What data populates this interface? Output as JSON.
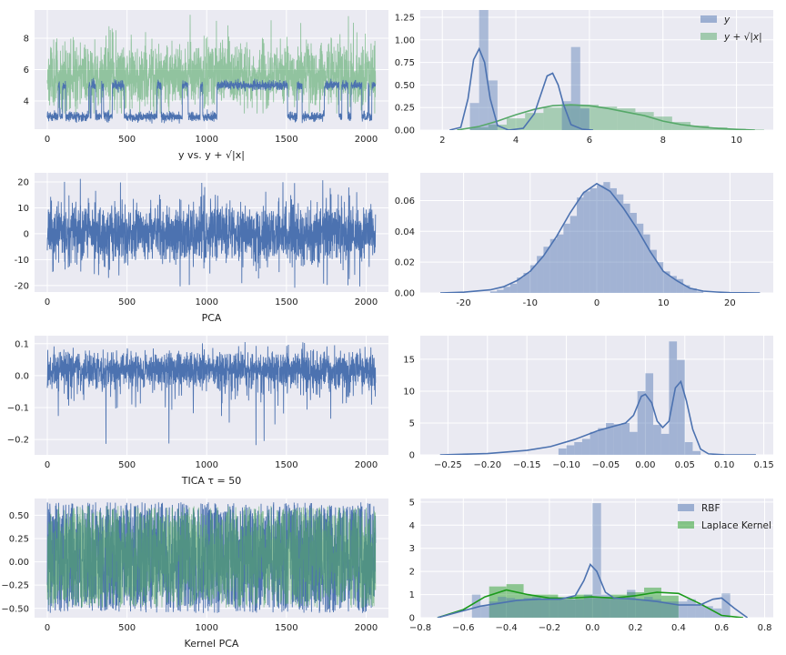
{
  "figure": {
    "background": "#ffffff",
    "panel_bg": "#EAEAF2",
    "grid_color": "#ffffff",
    "colors": {
      "blue": "#4C72B0",
      "green": "#55A868",
      "green_pure": "#1a9a1a"
    }
  },
  "chart_data": [
    {
      "id": "p1",
      "type": "line",
      "xlabel": "y  vs.  y + √|x|",
      "xlim": [
        -80,
        2140
      ],
      "ylim": [
        2.2,
        9.8
      ],
      "xticks": [
        0,
        500,
        1000,
        1500,
        2000
      ],
      "yticks": [
        4,
        6,
        8
      ],
      "n_points": 2060,
      "series": [
        {
          "name": "y + sqrt(|x|)",
          "color": "green",
          "alpha": 0.6,
          "kind": "noisy",
          "mean": 5.6,
          "sd": 1.0,
          "min": 3.2,
          "max": 9.5,
          "seed": 11
        },
        {
          "name": "y",
          "color": "blue",
          "alpha": 1,
          "kind": "switch",
          "states": [
            3.0,
            5.0
          ],
          "noise": 0.15,
          "p_switch": 0.02,
          "seed": 7
        }
      ]
    },
    {
      "id": "p2",
      "type": "hist+kde",
      "xlim": [
        1.4,
        11.0
      ],
      "ylim": [
        0,
        1.33
      ],
      "xticks": [
        2,
        4,
        6,
        8,
        10
      ],
      "yticks": [
        0.0,
        0.25,
        0.5,
        0.75,
        1.0,
        1.25
      ],
      "ytick_labels": [
        "0.00",
        "0.25",
        "0.50",
        "0.75",
        "1.00",
        "1.25"
      ],
      "legend": {
        "position": "top-right",
        "entries": [
          {
            "label": "y",
            "color": "blue",
            "kind": "patch"
          },
          {
            "label": "y + √|x|",
            "color": "green",
            "kind": "patch"
          }
        ]
      },
      "series": [
        {
          "name": "y + sqrt(|x|)",
          "color": "green",
          "alpha": 0.45,
          "bins": {
            "start": 2.75,
            "width": 0.5,
            "values": [
              0.03,
              0.06,
              0.13,
              0.19,
              0.25,
              0.28,
              0.28,
              0.26,
              0.24,
              0.2,
              0.15,
              0.09,
              0.05,
              0.03,
              0.015,
              0.007
            ]
          },
          "kde": {
            "x": [
              2.4,
              3.0,
              3.5,
              4.0,
              4.5,
              5.0,
              5.5,
              6.0,
              6.5,
              7.0,
              7.5,
              8.0,
              8.5,
              9.0,
              9.5,
              10.0,
              10.5
            ],
            "y": [
              0.0,
              0.04,
              0.1,
              0.17,
              0.23,
              0.27,
              0.28,
              0.27,
              0.24,
              0.2,
              0.16,
              0.1,
              0.06,
              0.035,
              0.018,
              0.008,
              0.0
            ]
          }
        },
        {
          "name": "y",
          "color": "blue",
          "alpha": 0.4,
          "bins": {
            "start": 2.75,
            "width": 0.25,
            "values": [
              0.3,
              1.37,
              0.55,
              0.0,
              0.0,
              0.0,
              0.0,
              0.0,
              0.0,
              0.0,
              0.32,
              0.92,
              0.24
            ]
          },
          "kde": {
            "x": [
              2.2,
              2.5,
              2.7,
              2.85,
              3.0,
              3.15,
              3.3,
              3.5,
              3.8,
              4.2,
              4.5,
              4.7,
              4.85,
              5.0,
              5.15,
              5.3,
              5.5,
              5.8,
              6.1
            ],
            "y": [
              0.0,
              0.03,
              0.35,
              0.78,
              0.9,
              0.75,
              0.35,
              0.05,
              0.0,
              0.02,
              0.18,
              0.42,
              0.6,
              0.63,
              0.5,
              0.28,
              0.06,
              0.01,
              0.0
            ]
          }
        }
      ]
    },
    {
      "id": "p3",
      "type": "line",
      "xlabel": "PCA",
      "xlim": [
        -80,
        2140
      ],
      "ylim": [
        -22.5,
        23.5
      ],
      "xticks": [
        0,
        500,
        1000,
        1500,
        2000
      ],
      "yticks": [
        -20,
        -10,
        0,
        10,
        20
      ],
      "n_points": 2060,
      "series": [
        {
          "name": "PCA",
          "color": "blue",
          "alpha": 1,
          "kind": "noisy",
          "mean": 0,
          "sd": 5.8,
          "min": -21,
          "max": 21.5,
          "seed": 23
        }
      ]
    },
    {
      "id": "p4",
      "type": "hist+kde",
      "xlim": [
        -26.5,
        26.5
      ],
      "ylim": [
        0,
        0.078
      ],
      "xticks": [
        -20,
        -10,
        0,
        10,
        20
      ],
      "yticks": [
        0.0,
        0.02,
        0.04,
        0.06
      ],
      "ytick_labels": [
        "0.00",
        "0.02",
        "0.04",
        "0.06"
      ],
      "series": [
        {
          "name": "PCA",
          "color": "blue",
          "alpha": 0.45,
          "bins": {
            "start": -16,
            "width": 1,
            "values": [
              0.001,
              0.002,
              0.004,
              0.006,
              0.01,
              0.013,
              0.018,
              0.024,
              0.03,
              0.035,
              0.038,
              0.045,
              0.05,
              0.062,
              0.066,
              0.068,
              0.07,
              0.072,
              0.068,
              0.064,
              0.058,
              0.052,
              0.045,
              0.038,
              0.028,
              0.02,
              0.014,
              0.011,
              0.009,
              0.005,
              0.003,
              0.001
            ]
          },
          "kde": {
            "x": [
              -23.5,
              -20,
              -16,
              -14,
              -12,
              -10,
              -8,
              -6,
              -4,
              -2,
              0,
              2,
              4,
              6,
              8,
              10,
              12,
              14,
              16,
              18,
              20,
              22,
              24.5
            ],
            "y": [
              0.0,
              0.0005,
              0.002,
              0.004,
              0.008,
              0.014,
              0.024,
              0.037,
              0.052,
              0.065,
              0.071,
              0.066,
              0.055,
              0.042,
              0.027,
              0.014,
              0.008,
              0.003,
              0.0012,
              0.0006,
              0.0002,
              0.0001,
              0.0
            ]
          }
        }
      ]
    },
    {
      "id": "p5",
      "type": "line",
      "xlabel": "TICA τ = 50",
      "xlim": [
        -80,
        2140
      ],
      "ylim": [
        -0.248,
        0.125
      ],
      "xticks": [
        0,
        500,
        1000,
        1500,
        2000
      ],
      "yticks": [
        -0.2,
        -0.1,
        0.0,
        0.1
      ],
      "ytick_labels": [
        "−0.2",
        "−0.1",
        "0.0",
        "0.1"
      ],
      "n_points": 2060,
      "series": [
        {
          "name": "TICA",
          "color": "blue",
          "alpha": 1,
          "kind": "skew",
          "mean": 0.02,
          "sd": 0.028,
          "min": -0.23,
          "max": 0.105,
          "seed": 31
        }
      ]
    },
    {
      "id": "p6",
      "type": "hist+kde",
      "xlim": [
        -0.285,
        0.162
      ],
      "ylim": [
        0,
        18.7
      ],
      "xticks": [
        -0.25,
        -0.2,
        -0.15,
        -0.1,
        -0.05,
        0.0,
        0.05,
        0.1,
        0.15
      ],
      "xtick_labels": [
        "−0.25",
        "−0.20",
        "−0.15",
        "−0.10",
        "−0.05",
        "0.00",
        "0.05",
        "0.10",
        "0.15"
      ],
      "yticks": [
        0,
        5,
        10,
        15
      ],
      "series": [
        {
          "name": "TICA",
          "color": "blue",
          "alpha": 0.45,
          "bins": {
            "start": -0.11,
            "width": 0.01,
            "values": [
              1.0,
              1.5,
              2.0,
              2.5,
              3.6,
              4.2,
              5.0,
              4.8,
              5.0,
              3.6,
              10.0,
              12.8,
              4.7,
              3.3,
              17.8,
              14.9,
              2.0,
              0.6
            ]
          },
          "kde": {
            "x": [
              -0.26,
              -0.2,
              -0.15,
              -0.12,
              -0.09,
              -0.06,
              -0.04,
              -0.025,
              -0.015,
              -0.005,
              0.0,
              0.008,
              0.015,
              0.022,
              0.03,
              0.038,
              0.045,
              0.052,
              0.06,
              0.07,
              0.08,
              0.1,
              0.14
            ],
            "y": [
              0.0,
              0.2,
              0.7,
              1.3,
              2.4,
              3.8,
              4.5,
              5.0,
              6.2,
              9.2,
              9.5,
              8.2,
              5.3,
              4.3,
              5.3,
              10.5,
              11.5,
              8.5,
              4.0,
              0.9,
              0.15,
              0.02,
              0.0
            ]
          }
        }
      ]
    },
    {
      "id": "p7",
      "type": "line",
      "xlabel": "Kernel PCA",
      "xlim": [
        -80,
        2140
      ],
      "ylim": [
        -0.6,
        0.68
      ],
      "xticks": [
        0,
        500,
        1000,
        1500,
        2000
      ],
      "yticks": [
        -0.5,
        -0.25,
        0.0,
        0.25,
        0.5
      ],
      "ytick_labels": [
        "−0.50",
        "−0.25",
        "0.00",
        "0.25",
        "0.50"
      ],
      "n_points": 2060,
      "series": [
        {
          "name": "RBF",
          "color": "blue",
          "alpha": 1,
          "kind": "uniform",
          "min": -0.55,
          "max": 0.64,
          "seed": 41
        },
        {
          "name": "Laplace Kernel",
          "color": "green",
          "alpha": 0.6,
          "kind": "uniform",
          "min": -0.5,
          "max": 0.6,
          "seed": 53
        }
      ]
    },
    {
      "id": "p8",
      "type": "hist+kde",
      "xlim": [
        -0.8,
        0.84
      ],
      "ylim": [
        0,
        5.15
      ],
      "xticks": [
        -0.8,
        -0.6,
        -0.4,
        -0.2,
        0.0,
        0.2,
        0.4,
        0.6,
        0.8
      ],
      "xtick_labels": [
        "−0.8",
        "−0.6",
        "−0.4",
        "−0.2",
        "0.0",
        "0.2",
        "0.4",
        "0.6",
        "0.8"
      ],
      "yticks": [
        0,
        1,
        2,
        3,
        4,
        5
      ],
      "legend": {
        "position": "top-right",
        "entries": [
          {
            "label": "RBF",
            "color": "blue",
            "kind": "patch"
          },
          {
            "label": "Laplace Kernel",
            "color": "green_pure",
            "kind": "patch"
          }
        ]
      },
      "series": [
        {
          "name": "Laplace Kernel",
          "color": "green_pure",
          "alpha": 0.45,
          "bins": {
            "start": -0.48,
            "width": 0.08,
            "values": [
              1.35,
              1.45,
              1.0,
              1.0,
              0.8,
              1.0,
              0.9,
              1.0,
              1.1,
              1.3,
              0.95,
              0.0
            ]
          },
          "kde": {
            "x": [
              -0.72,
              -0.6,
              -0.5,
              -0.4,
              -0.3,
              -0.2,
              -0.1,
              0.0,
              0.1,
              0.2,
              0.3,
              0.4,
              0.5,
              0.6,
              0.7
            ],
            "y": [
              0.0,
              0.35,
              0.9,
              1.2,
              1.0,
              0.85,
              0.85,
              0.9,
              0.85,
              0.95,
              1.1,
              1.05,
              0.6,
              0.1,
              0.0
            ]
          }
        },
        {
          "name": "RBF",
          "color": "blue",
          "alpha": 0.4,
          "bins": {
            "start": -0.56,
            "width": 0.04,
            "values": [
              1.0,
              0.5,
              0.7,
              0.9,
              0.85,
              0.8,
              0.85,
              0.9,
              0.8,
              0.8,
              0.8,
              0.8,
              0.8,
              1.0,
              4.95,
              1.0,
              0.85,
              0.85,
              1.2,
              0.8,
              0.9,
              0.8,
              0.7,
              0.7,
              0.7,
              0.8,
              0.6,
              0.5,
              0.4,
              1.05
            ]
          },
          "kde": {
            "x": [
              -0.72,
              -0.6,
              -0.52,
              -0.45,
              -0.35,
              -0.25,
              -0.15,
              -0.08,
              -0.04,
              -0.01,
              0.02,
              0.06,
              0.1,
              0.2,
              0.3,
              0.4,
              0.5,
              0.56,
              0.6,
              0.66,
              0.72
            ],
            "y": [
              0.0,
              0.3,
              0.5,
              0.6,
              0.75,
              0.8,
              0.8,
              0.95,
              1.6,
              2.3,
              2.0,
              1.1,
              0.85,
              0.8,
              0.7,
              0.55,
              0.55,
              0.8,
              0.85,
              0.4,
              0.0
            ]
          }
        }
      ]
    }
  ]
}
